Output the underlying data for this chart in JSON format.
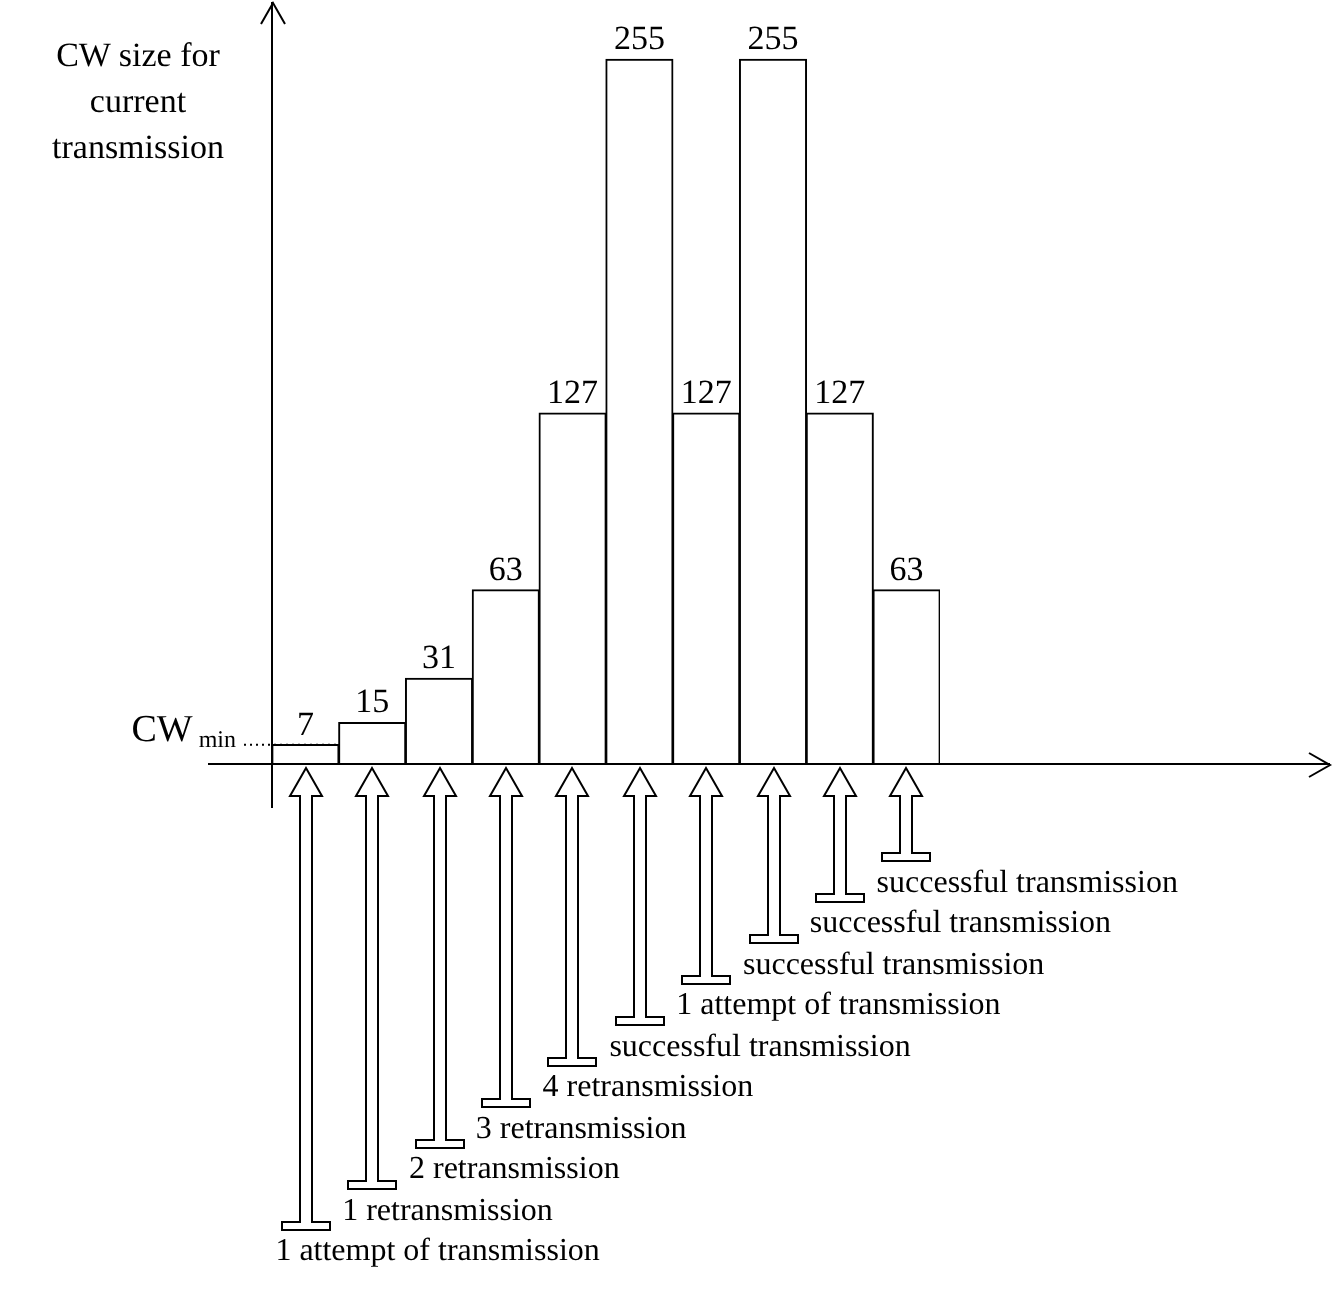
{
  "chart_data": {
    "type": "bar",
    "ylabel": "CW size for current transmission",
    "categories": [
      null,
      null,
      null,
      null,
      null,
      null,
      null,
      null,
      null,
      null
    ],
    "values": [
      7,
      15,
      31,
      63,
      127,
      255,
      127,
      255,
      127,
      63
    ],
    "color": "#ffffff",
    "data_labels": true,
    "tick_labels": false,
    "legend": false,
    "ref_lines": [
      {
        "axis": "y",
        "value": 7,
        "label": "CW$_{min}$",
        "line_style": "dotted"
      }
    ],
    "annotations": [
      "1 attempt of transmission",
      "1 retransmission",
      "2 retransmission",
      "3 retransmission",
      "4 retransmission",
      "successful transmission",
      "1 attempt of transmission",
      "successful transmission",
      "successful transmission",
      "successful transmission"
    ]
  }
}
